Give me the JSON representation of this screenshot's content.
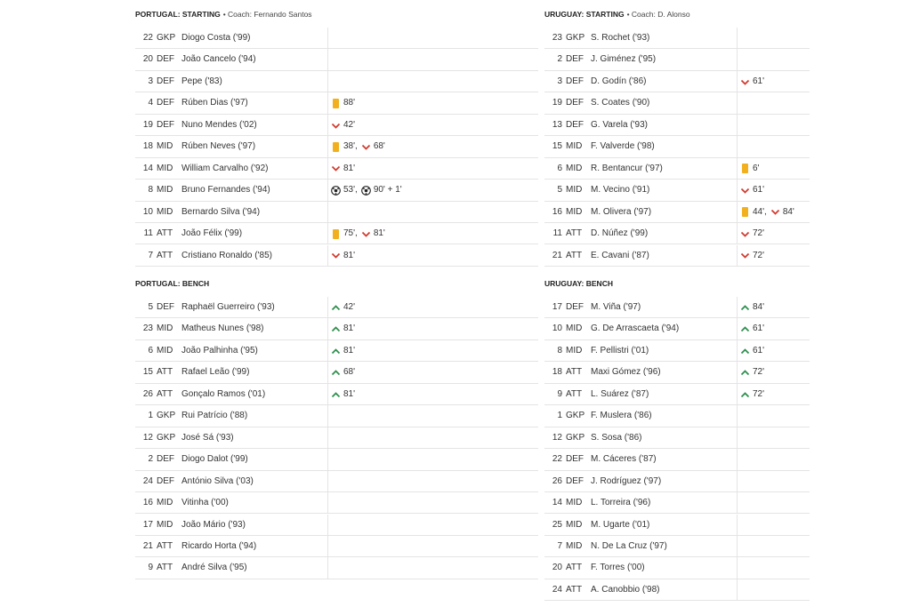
{
  "teams": [
    {
      "starting": {
        "heading": "PORTUGAL: STARTING",
        "coach": "• Coach: Fernando Santos",
        "rows": [
          {
            "number": 22,
            "pos": "GKP",
            "name": "Diogo Costa ('99)",
            "events": []
          },
          {
            "number": 20,
            "pos": "DEF",
            "name": "João Cancelo ('94)",
            "events": []
          },
          {
            "number": 3,
            "pos": "DEF",
            "name": "Pepe ('83)",
            "events": []
          },
          {
            "number": 4,
            "pos": "DEF",
            "name": "Rúben Dias ('97)",
            "events": [
              {
                "icon": "yellow",
                "text": "88'"
              }
            ]
          },
          {
            "number": 19,
            "pos": "DEF",
            "name": "Nuno Mendes ('02)",
            "events": [
              {
                "icon": "sub-off",
                "text": "42'"
              }
            ]
          },
          {
            "number": 18,
            "pos": "MID",
            "name": "Rúben Neves ('97)",
            "events": [
              {
                "icon": "yellow",
                "text": "38',"
              },
              {
                "icon": "sub-off",
                "text": "68'"
              }
            ]
          },
          {
            "number": 14,
            "pos": "MID",
            "name": "William Carvalho ('92)",
            "events": [
              {
                "icon": "sub-off",
                "text": "81'"
              }
            ]
          },
          {
            "number": 8,
            "pos": "MID",
            "name": "Bruno Fernandes ('94)",
            "events": [
              {
                "icon": "goal",
                "text": "53',"
              },
              {
                "icon": "goal",
                "text": "90' + 1'"
              }
            ]
          },
          {
            "number": 10,
            "pos": "MID",
            "name": "Bernardo Silva ('94)",
            "events": []
          },
          {
            "number": 11,
            "pos": "ATT",
            "name": "João Félix ('99)",
            "events": [
              {
                "icon": "yellow",
                "text": "75',"
              },
              {
                "icon": "sub-off",
                "text": "81'"
              }
            ]
          },
          {
            "number": 7,
            "pos": "ATT",
            "name": "Cristiano Ronaldo ('85)",
            "events": [
              {
                "icon": "sub-off",
                "text": "81'"
              }
            ]
          }
        ]
      },
      "bench": {
        "heading": "PORTUGAL: BENCH",
        "rows": [
          {
            "number": 5,
            "pos": "DEF",
            "name": "Raphaël Guerreiro ('93)",
            "events": [
              {
                "icon": "sub-on",
                "text": "42'"
              }
            ]
          },
          {
            "number": 23,
            "pos": "MID",
            "name": "Matheus Nunes ('98)",
            "events": [
              {
                "icon": "sub-on",
                "text": "81'"
              }
            ]
          },
          {
            "number": 6,
            "pos": "MID",
            "name": "João Palhinha ('95)",
            "events": [
              {
                "icon": "sub-on",
                "text": "81'"
              }
            ]
          },
          {
            "number": 15,
            "pos": "ATT",
            "name": "Rafael Leão ('99)",
            "events": [
              {
                "icon": "sub-on",
                "text": "68'"
              }
            ]
          },
          {
            "number": 26,
            "pos": "ATT",
            "name": "Gonçalo Ramos ('01)",
            "events": [
              {
                "icon": "sub-on",
                "text": "81'"
              }
            ]
          },
          {
            "number": 1,
            "pos": "GKP",
            "name": "Rui Patrício ('88)",
            "events": []
          },
          {
            "number": 12,
            "pos": "GKP",
            "name": "José Sá ('93)",
            "events": []
          },
          {
            "number": 2,
            "pos": "DEF",
            "name": "Diogo Dalot ('99)",
            "events": []
          },
          {
            "number": 24,
            "pos": "DEF",
            "name": "António Silva ('03)",
            "events": []
          },
          {
            "number": 16,
            "pos": "MID",
            "name": "Vitinha ('00)",
            "events": []
          },
          {
            "number": 17,
            "pos": "MID",
            "name": "João Mário ('93)",
            "events": []
          },
          {
            "number": 21,
            "pos": "ATT",
            "name": "Ricardo Horta ('94)",
            "events": []
          },
          {
            "number": 9,
            "pos": "ATT",
            "name": "André Silva ('95)",
            "events": []
          }
        ]
      }
    },
    {
      "starting": {
        "heading": "URUGUAY: STARTING",
        "coach": "• Coach: D. Alonso",
        "rows": [
          {
            "number": 23,
            "pos": "GKP",
            "name": "S. Rochet ('93)",
            "events": []
          },
          {
            "number": 2,
            "pos": "DEF",
            "name": "J. Giménez ('95)",
            "events": []
          },
          {
            "number": 3,
            "pos": "DEF",
            "name": "D. Godín ('86)",
            "events": [
              {
                "icon": "sub-off",
                "text": "61'"
              }
            ]
          },
          {
            "number": 19,
            "pos": "DEF",
            "name": "S. Coates ('90)",
            "events": []
          },
          {
            "number": 13,
            "pos": "DEF",
            "name": "G. Varela ('93)",
            "events": []
          },
          {
            "number": 15,
            "pos": "MID",
            "name": "F. Valverde ('98)",
            "events": []
          },
          {
            "number": 6,
            "pos": "MID",
            "name": "R. Bentancur ('97)",
            "events": [
              {
                "icon": "yellow",
                "text": "6'"
              }
            ]
          },
          {
            "number": 5,
            "pos": "MID",
            "name": "M. Vecino ('91)",
            "events": [
              {
                "icon": "sub-off",
                "text": "61'"
              }
            ]
          },
          {
            "number": 16,
            "pos": "MID",
            "name": "M. Olivera ('97)",
            "events": [
              {
                "icon": "yellow",
                "text": "44',"
              },
              {
                "icon": "sub-off",
                "text": "84'"
              }
            ]
          },
          {
            "number": 11,
            "pos": "ATT",
            "name": "D. Núñez ('99)",
            "events": [
              {
                "icon": "sub-off",
                "text": "72'"
              }
            ]
          },
          {
            "number": 21,
            "pos": "ATT",
            "name": "E. Cavani ('87)",
            "events": [
              {
                "icon": "sub-off",
                "text": "72'"
              }
            ]
          }
        ]
      },
      "bench": {
        "heading": "URUGUAY: BENCH",
        "rows": [
          {
            "number": 17,
            "pos": "DEF",
            "name": "M. Viña ('97)",
            "events": [
              {
                "icon": "sub-on",
                "text": "84'"
              }
            ]
          },
          {
            "number": 10,
            "pos": "MID",
            "name": "G. De Arrascaeta ('94)",
            "events": [
              {
                "icon": "sub-on",
                "text": "61'"
              }
            ]
          },
          {
            "number": 8,
            "pos": "MID",
            "name": "F. Pellistri ('01)",
            "events": [
              {
                "icon": "sub-on",
                "text": "61'"
              }
            ]
          },
          {
            "number": 18,
            "pos": "ATT",
            "name": "Maxi Gómez ('96)",
            "events": [
              {
                "icon": "sub-on",
                "text": "72'"
              }
            ]
          },
          {
            "number": 9,
            "pos": "ATT",
            "name": "L. Suárez ('87)",
            "events": [
              {
                "icon": "sub-on",
                "text": "72'"
              }
            ]
          },
          {
            "number": 1,
            "pos": "GKP",
            "name": "F. Muslera ('86)",
            "events": []
          },
          {
            "number": 12,
            "pos": "GKP",
            "name": "S. Sosa ('86)",
            "events": []
          },
          {
            "number": 22,
            "pos": "DEF",
            "name": "M. Cáceres ('87)",
            "events": []
          },
          {
            "number": 26,
            "pos": "DEF",
            "name": "J. Rodríguez ('97)",
            "events": []
          },
          {
            "number": 14,
            "pos": "MID",
            "name": "L. Torreira ('96)",
            "events": []
          },
          {
            "number": 25,
            "pos": "MID",
            "name": "M. Ugarte ('01)",
            "events": []
          },
          {
            "number": 7,
            "pos": "MID",
            "name": "N. De La Cruz ('97)",
            "events": []
          },
          {
            "number": 20,
            "pos": "ATT",
            "name": "F. Torres ('00)",
            "events": []
          },
          {
            "number": 24,
            "pos": "ATT",
            "name": "A. Canobbio ('98)",
            "events": []
          }
        ]
      }
    }
  ]
}
